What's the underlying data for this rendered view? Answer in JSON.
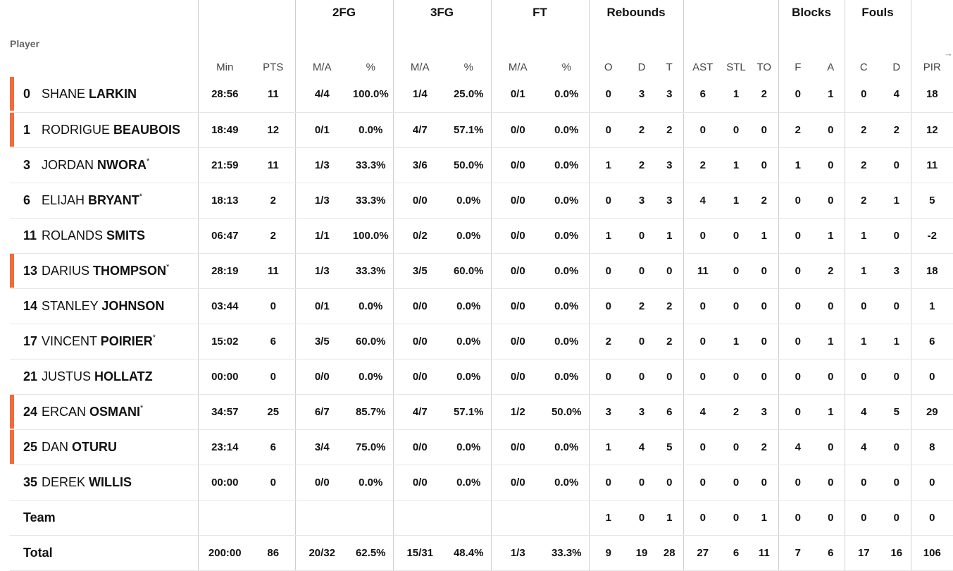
{
  "groups": {
    "fg2": "2FG",
    "fg3": "3FG",
    "ft": "FT",
    "reb": "Rebounds",
    "blk": "Blocks",
    "fouls": "Fouls"
  },
  "headers": {
    "player": "Player",
    "min": "Min",
    "pts": "PTS",
    "fg2_ma": "M/A",
    "fg2_pct": "%",
    "fg3_ma": "M/A",
    "fg3_pct": "%",
    "ft_ma": "M/A",
    "ft_pct": "%",
    "o": "O",
    "d": "D",
    "t": "T",
    "ast": "AST",
    "stl": "STL",
    "to": "TO",
    "f": "F",
    "a": "A",
    "c": "C",
    "fd": "D",
    "pir": "PIR"
  },
  "players": [
    {
      "num": "0",
      "first": "SHANE",
      "last": "LARKIN",
      "star": "",
      "mark": true,
      "min": "28:56",
      "pts": "11",
      "fg2": "4/4",
      "fg2p": "100.0%",
      "fg3": "1/4",
      "fg3p": "25.0%",
      "ft": "0/1",
      "ftp": "0.0%",
      "o": "0",
      "d": "3",
      "t": "3",
      "ast": "6",
      "stl": "1",
      "to": "2",
      "bf": "0",
      "ba": "1",
      "fc": "0",
      "fd": "4",
      "pir": "18"
    },
    {
      "num": "1",
      "first": "RODRIGUE",
      "last": "BEAUBOIS",
      "star": "",
      "mark": true,
      "min": "18:49",
      "pts": "12",
      "fg2": "0/1",
      "fg2p": "0.0%",
      "fg3": "4/7",
      "fg3p": "57.1%",
      "ft": "0/0",
      "ftp": "0.0%",
      "o": "0",
      "d": "2",
      "t": "2",
      "ast": "0",
      "stl": "0",
      "to": "0",
      "bf": "2",
      "ba": "0",
      "fc": "2",
      "fd": "2",
      "pir": "12"
    },
    {
      "num": "3",
      "first": "JORDAN",
      "last": "NWORA",
      "star": "*",
      "mark": false,
      "min": "21:59",
      "pts": "11",
      "fg2": "1/3",
      "fg2p": "33.3%",
      "fg3": "3/6",
      "fg3p": "50.0%",
      "ft": "0/0",
      "ftp": "0.0%",
      "o": "1",
      "d": "2",
      "t": "3",
      "ast": "2",
      "stl": "1",
      "to": "0",
      "bf": "1",
      "ba": "0",
      "fc": "2",
      "fd": "0",
      "pir": "11"
    },
    {
      "num": "6",
      "first": "ELIJAH",
      "last": "BRYANT",
      "star": "*",
      "mark": false,
      "min": "18:13",
      "pts": "2",
      "fg2": "1/3",
      "fg2p": "33.3%",
      "fg3": "0/0",
      "fg3p": "0.0%",
      "ft": "0/0",
      "ftp": "0.0%",
      "o": "0",
      "d": "3",
      "t": "3",
      "ast": "4",
      "stl": "1",
      "to": "2",
      "bf": "0",
      "ba": "0",
      "fc": "2",
      "fd": "1",
      "pir": "5"
    },
    {
      "num": "11",
      "first": "ROLANDS",
      "last": "SMITS",
      "star": "",
      "mark": false,
      "min": "06:47",
      "pts": "2",
      "fg2": "1/1",
      "fg2p": "100.0%",
      "fg3": "0/2",
      "fg3p": "0.0%",
      "ft": "0/0",
      "ftp": "0.0%",
      "o": "1",
      "d": "0",
      "t": "1",
      "ast": "0",
      "stl": "0",
      "to": "1",
      "bf": "0",
      "ba": "1",
      "fc": "1",
      "fd": "0",
      "pir": "-2"
    },
    {
      "num": "13",
      "first": "DARIUS",
      "last": "THOMPSON",
      "star": "*",
      "mark": true,
      "min": "28:19",
      "pts": "11",
      "fg2": "1/3",
      "fg2p": "33.3%",
      "fg3": "3/5",
      "fg3p": "60.0%",
      "ft": "0/0",
      "ftp": "0.0%",
      "o": "0",
      "d": "0",
      "t": "0",
      "ast": "11",
      "stl": "0",
      "to": "0",
      "bf": "0",
      "ba": "2",
      "fc": "1",
      "fd": "3",
      "pir": "18"
    },
    {
      "num": "14",
      "first": "STANLEY",
      "last": "JOHNSON",
      "star": "",
      "mark": false,
      "min": "03:44",
      "pts": "0",
      "fg2": "0/1",
      "fg2p": "0.0%",
      "fg3": "0/0",
      "fg3p": "0.0%",
      "ft": "0/0",
      "ftp": "0.0%",
      "o": "0",
      "d": "2",
      "t": "2",
      "ast": "0",
      "stl": "0",
      "to": "0",
      "bf": "0",
      "ba": "0",
      "fc": "0",
      "fd": "0",
      "pir": "1"
    },
    {
      "num": "17",
      "first": "VINCENT",
      "last": "POIRIER",
      "star": "*",
      "mark": false,
      "min": "15:02",
      "pts": "6",
      "fg2": "3/5",
      "fg2p": "60.0%",
      "fg3": "0/0",
      "fg3p": "0.0%",
      "ft": "0/0",
      "ftp": "0.0%",
      "o": "2",
      "d": "0",
      "t": "2",
      "ast": "0",
      "stl": "1",
      "to": "0",
      "bf": "0",
      "ba": "1",
      "fc": "1",
      "fd": "1",
      "pir": "6"
    },
    {
      "num": "21",
      "first": "JUSTUS",
      "last": "HOLLATZ",
      "star": "",
      "mark": false,
      "min": "00:00",
      "pts": "0",
      "fg2": "0/0",
      "fg2p": "0.0%",
      "fg3": "0/0",
      "fg3p": "0.0%",
      "ft": "0/0",
      "ftp": "0.0%",
      "o": "0",
      "d": "0",
      "t": "0",
      "ast": "0",
      "stl": "0",
      "to": "0",
      "bf": "0",
      "ba": "0",
      "fc": "0",
      "fd": "0",
      "pir": "0"
    },
    {
      "num": "24",
      "first": "ERCAN",
      "last": "OSMANI",
      "star": "*",
      "mark": true,
      "min": "34:57",
      "pts": "25",
      "fg2": "6/7",
      "fg2p": "85.7%",
      "fg3": "4/7",
      "fg3p": "57.1%",
      "ft": "1/2",
      "ftp": "50.0%",
      "o": "3",
      "d": "3",
      "t": "6",
      "ast": "4",
      "stl": "2",
      "to": "3",
      "bf": "0",
      "ba": "1",
      "fc": "4",
      "fd": "5",
      "pir": "29"
    },
    {
      "num": "25",
      "first": "DAN",
      "last": "OTURU",
      "star": "",
      "mark": true,
      "min": "23:14",
      "pts": "6",
      "fg2": "3/4",
      "fg2p": "75.0%",
      "fg3": "0/0",
      "fg3p": "0.0%",
      "ft": "0/0",
      "ftp": "0.0%",
      "o": "1",
      "d": "4",
      "t": "5",
      "ast": "0",
      "stl": "0",
      "to": "2",
      "bf": "4",
      "ba": "0",
      "fc": "4",
      "fd": "0",
      "pir": "8"
    },
    {
      "num": "35",
      "first": "DEREK",
      "last": "WILLIS",
      "star": "",
      "mark": false,
      "min": "00:00",
      "pts": "0",
      "fg2": "0/0",
      "fg2p": "0.0%",
      "fg3": "0/0",
      "fg3p": "0.0%",
      "ft": "0/0",
      "ftp": "0.0%",
      "o": "0",
      "d": "0",
      "t": "0",
      "ast": "0",
      "stl": "0",
      "to": "0",
      "bf": "0",
      "ba": "0",
      "fc": "0",
      "fd": "0",
      "pir": "0"
    }
  ],
  "team": {
    "label": "Team",
    "o": "1",
    "d": "0",
    "t": "1",
    "ast": "0",
    "stl": "0",
    "to": "1",
    "bf": "0",
    "ba": "0",
    "fc": "0",
    "fd": "0",
    "pir": "0"
  },
  "total": {
    "label": "Total",
    "min": "200:00",
    "pts": "86",
    "fg2": "20/32",
    "fg2p": "62.5%",
    "fg3": "15/31",
    "fg3p": "48.4%",
    "ft": "1/3",
    "ftp": "33.3%",
    "o": "9",
    "d": "19",
    "t": "28",
    "ast": "27",
    "stl": "6",
    "to": "11",
    "bf": "7",
    "ba": "6",
    "fc": "17",
    "fd": "16",
    "pir": "106"
  },
  "colors": {
    "starter_mark": "#f26b3a"
  },
  "icons": {
    "scroll": "arrow-right-icon"
  }
}
